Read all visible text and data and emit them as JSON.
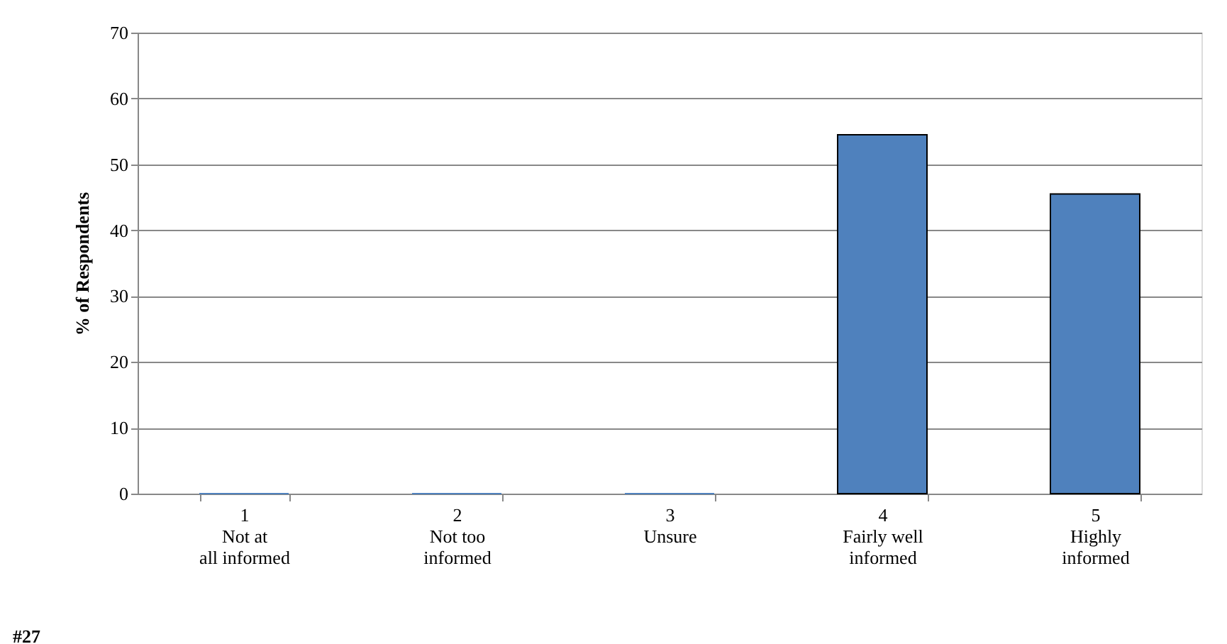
{
  "chart_data": {
    "type": "bar",
    "ylabel": "% of Respondents",
    "categories": [
      "1\nNot at\nall informed",
      "2\nNot too\ninformed",
      "3\nUnsure",
      "4\nFairly well\ninformed",
      "5\nHighly\ninformed"
    ],
    "values": [
      0,
      0,
      0,
      54.5,
      45.5
    ],
    "color": "#4f81bd",
    "ylim": [
      0,
      70
    ],
    "yticks": [
      0,
      10,
      20,
      30,
      40,
      50,
      60,
      70
    ],
    "grid": "y",
    "annotations": [
      "#27"
    ]
  }
}
